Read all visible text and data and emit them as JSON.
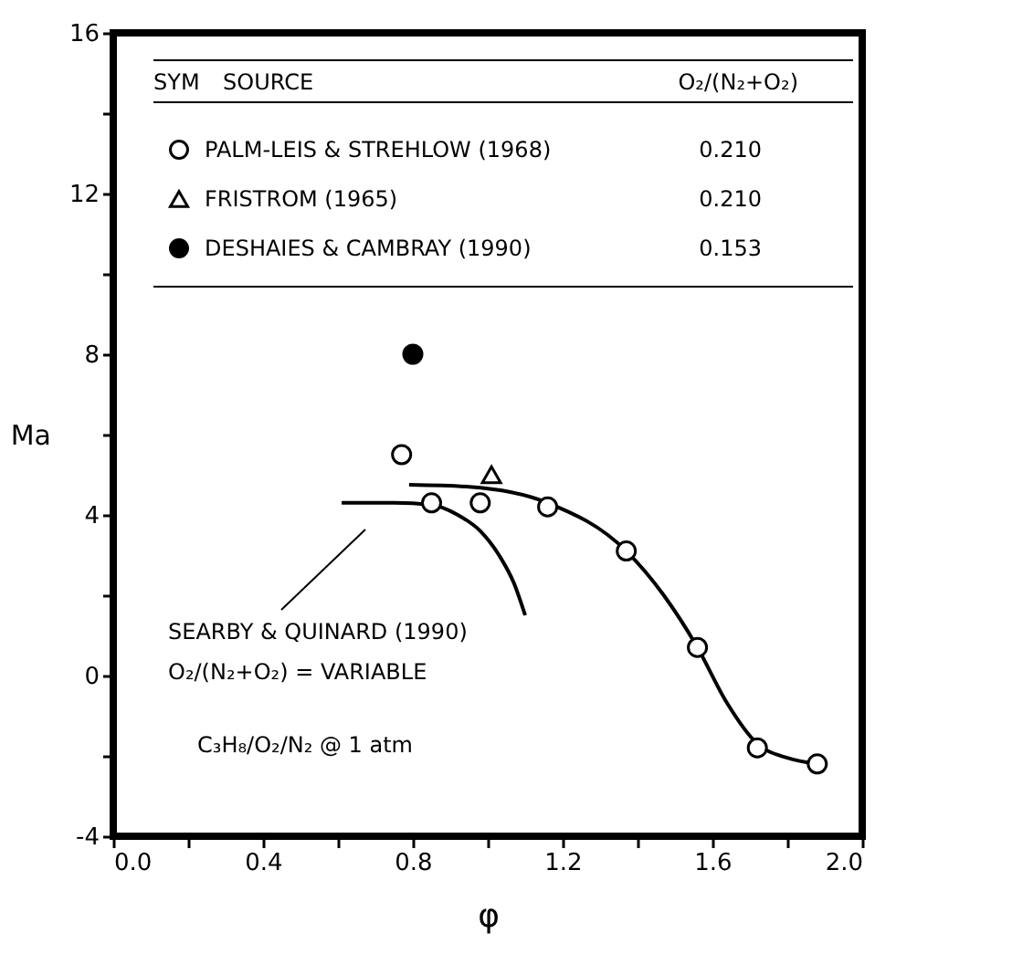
{
  "chart_data": {
    "type": "scatter",
    "xlabel": "φ",
    "ylabel": "Ma",
    "xlim": [
      0,
      2.0
    ],
    "ylim": [
      -4,
      16
    ],
    "xticks": [
      {
        "value": 0,
        "label": "0.0"
      },
      {
        "value": 0.2,
        "label": null
      },
      0.4,
      {
        "value": 0.6,
        "label": null
      },
      0.8,
      {
        "value": 1.0,
        "label": null
      },
      1.2,
      {
        "value": 1.4,
        "label": null
      },
      1.6,
      {
        "value": 1.8,
        "label": null
      },
      {
        "value": 2.0,
        "label": "2.0"
      }
    ],
    "yticks": [
      -4,
      {
        "value": -2,
        "label": null
      },
      0,
      {
        "value": 2,
        "label": null
      },
      4,
      {
        "value": 6,
        "label": null
      },
      8,
      {
        "value": 10,
        "label": null
      },
      12,
      {
        "value": 14,
        "label": null
      },
      16
    ],
    "legend": "top",
    "grid": false,
    "annotations": [
      "SOURCE",
      "O₂/(N₂+O₂)",
      "SYM",
      "0.210",
      "0.210",
      "0.153",
      "SEARBY & QUINARD (1990)",
      "O₂/(N₂+O₂) = VARIABLE",
      "C₃H₈/O₂/N₂ @ 1 atm"
    ],
    "series": [
      {
        "name": "PALM-LEIS & STREHLOW (1968)",
        "marker": "circle",
        "color": "#ffffff",
        "x": [
          0.77,
          0.85,
          0.98,
          1.16,
          1.37,
          1.56,
          1.72,
          1.88
        ],
        "values": [
          5.5,
          4.3,
          4.3,
          4.2,
          3.1,
          0.7,
          -1.8,
          -2.2
        ]
      },
      {
        "name": "FRISTROM (1965)",
        "marker": "triangle",
        "color": "#ffffff",
        "x": [
          1.01
        ],
        "values": [
          5.0
        ]
      },
      {
        "name": "DESHAIES & CAMBRAY (1990)",
        "marker": "circle",
        "color": "#000000",
        "x": [
          0.8
        ],
        "values": [
          8.0
        ]
      },
      {
        "type": "line",
        "marker": "none",
        "color": "#000000",
        "x": [
          0.61,
          0.75,
          0.85,
          0.92,
          0.98,
          1.03,
          1.07,
          1.1
        ],
        "values": [
          4.3,
          4.3,
          4.25,
          4.0,
          3.6,
          3.0,
          2.3,
          1.5
        ]
      },
      {
        "type": "line",
        "marker": "none",
        "color": "#000000",
        "x": [
          0.79,
          0.95,
          1.16,
          1.37,
          1.47,
          1.56,
          1.64,
          1.72,
          1.8,
          1.88
        ],
        "values": [
          4.75,
          4.7,
          4.3,
          3.1,
          2.0,
          0.7,
          -0.7,
          -1.7,
          -2.05,
          -2.2
        ]
      }
    ]
  }
}
